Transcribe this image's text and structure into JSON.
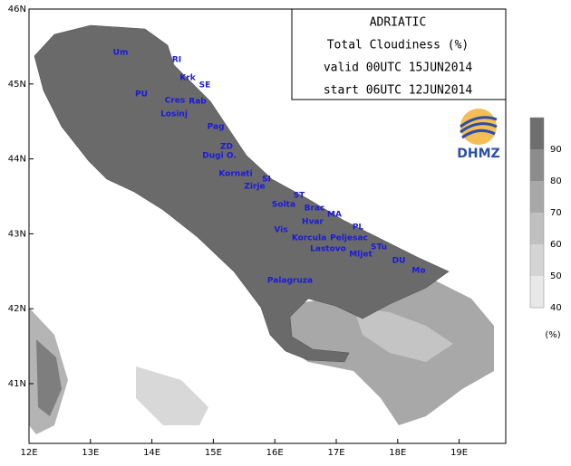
{
  "title_box": {
    "lines": [
      "ADRIATIC",
      "Total Cloudiness (%)",
      "valid 00UTC 15JUN2014",
      "start 06UTC 12JUN2014"
    ]
  },
  "logo": "DHMZ",
  "map": {
    "lat_labels": [
      "46N",
      "45N",
      "44N",
      "43N",
      "42N",
      "41N"
    ],
    "lon_labels": [
      "12E",
      "13E",
      "14E",
      "15E",
      "16E",
      "17E",
      "18E",
      "19E"
    ],
    "stations": [
      "Um",
      "RI",
      "Krk",
      "SE",
      "PU",
      "Cres",
      "Rab",
      "Losinj",
      "Pag",
      "ZD",
      "Dugi O.",
      "Kornati",
      "SI",
      "Zirje",
      "ST",
      "Solta",
      "Brac",
      "MA",
      "Hvar",
      "PL",
      "Vis",
      "Korcula",
      "Peljesac",
      "Lastovo",
      "STu",
      "Mljet",
      "DU",
      "Mo",
      "Palagruza"
    ]
  },
  "colorbar": {
    "levels": [
      90,
      80,
      70,
      60,
      50,
      40
    ],
    "unit": "(%)"
  }
}
